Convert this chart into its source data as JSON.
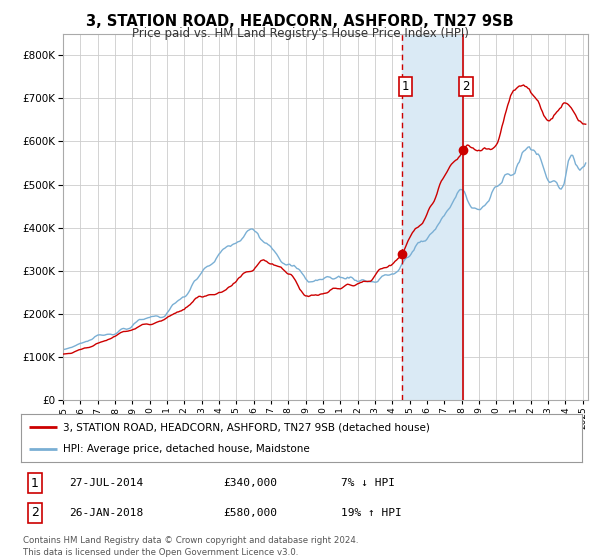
{
  "title": "3, STATION ROAD, HEADCORN, ASHFORD, TN27 9SB",
  "subtitle": "Price paid vs. HM Land Registry's House Price Index (HPI)",
  "legend_line1": "3, STATION ROAD, HEADCORN, ASHFORD, TN27 9SB (detached house)",
  "legend_line2": "HPI: Average price, detached house, Maidstone",
  "transaction1_label": "1",
  "transaction1_date": "27-JUL-2014",
  "transaction1_price": "£340,000",
  "transaction1_hpi": "7% ↓ HPI",
  "transaction2_label": "2",
  "transaction2_date": "26-JAN-2018",
  "transaction2_price": "£580,000",
  "transaction2_hpi": "19% ↑ HPI",
  "footnote": "Contains HM Land Registry data © Crown copyright and database right 2024.\nThis data is licensed under the Open Government Licence v3.0.",
  "red_color": "#cc0000",
  "blue_color": "#7aafd4",
  "highlight_color": "#daeaf5",
  "background_color": "#ffffff",
  "grid_color": "#cccccc",
  "ylim_min": 0,
  "ylim_max": 850000,
  "transaction1_year": 2014.57,
  "transaction1_value": 340000,
  "transaction2_year": 2018.07,
  "transaction2_value": 580000
}
